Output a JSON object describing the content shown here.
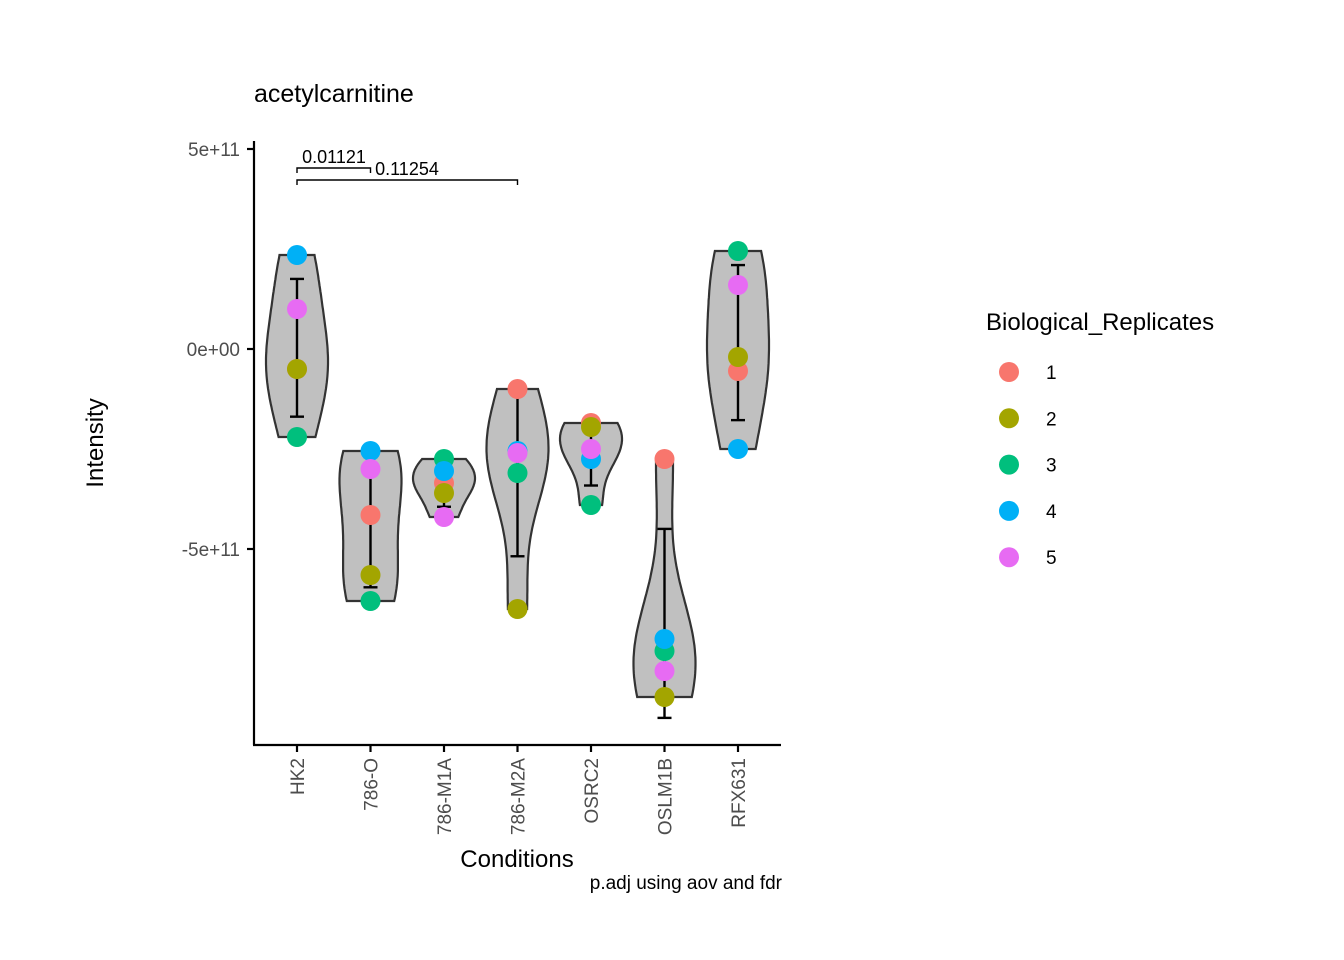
{
  "chart_data": {
    "type": "violin",
    "title": "acetylcarnitine",
    "xlabel": "Conditions",
    "ylabel": "Intensity",
    "caption": "p.adj using  aov and fdr",
    "categories": [
      "HK2",
      "786-O",
      "786-M1A",
      "786-M2A",
      "OSRC2",
      "OSLM1B",
      "RFX631"
    ],
    "ylim": [
      -1000000000000.0,
      500000000000.0
    ],
    "yticks": [
      500000000000.0,
      0,
      -500000000000.0
    ],
    "ytick_labels": [
      "5e+11",
      "0e+00",
      "-5e+11"
    ],
    "legend": {
      "title": "Biological_Replicates",
      "position": "right",
      "entries": [
        {
          "label": "1",
          "color": "#F8766D"
        },
        {
          "label": "2",
          "color": "#A3A500"
        },
        {
          "label": "3",
          "color": "#00BF7D"
        },
        {
          "label": "4",
          "color": "#00B0F6"
        },
        {
          "label": "5",
          "color": "#E76BF3"
        }
      ]
    },
    "series": [
      {
        "name": "1",
        "color": "#F8766D",
        "values": [
          -50000000000.0,
          -415000000000.0,
          -335000000000.0,
          -100000000000.0,
          -185000000000.0,
          -275000000000.0,
          -55000000000.0
        ]
      },
      {
        "name": "2",
        "color": "#A3A500",
        "values": [
          -50000000000.0,
          -565000000000.0,
          -360000000000.0,
          -650000000000.0,
          -195000000000.0,
          -870000000000.0,
          -20000000000.0
        ]
      },
      {
        "name": "3",
        "color": "#00BF7D",
        "values": [
          -220000000000.0,
          -630000000000.0,
          -275000000000.0,
          -310000000000.0,
          -390000000000.0,
          -755000000000.0,
          245000000000.0
        ]
      },
      {
        "name": "4",
        "color": "#00B0F6",
        "values": [
          235000000000.0,
          -255000000000.0,
          -305000000000.0,
          -255000000000.0,
          -275000000000.0,
          -725000000000.0,
          -250000000000.0
        ]
      },
      {
        "name": "5",
        "color": "#E76BF3",
        "values": [
          100000000000.0,
          -300000000000.0,
          -420000000000.0,
          -260000000000.0,
          -250000000000.0,
          -805000000000.0,
          160000000000.0
        ]
      }
    ],
    "comparisons": [
      {
        "group1": "HK2",
        "group2": "786-O",
        "label": "0.01121"
      },
      {
        "group1": "HK2",
        "group2": "786-M2A",
        "label": "0.11254"
      }
    ],
    "grid": false
  }
}
